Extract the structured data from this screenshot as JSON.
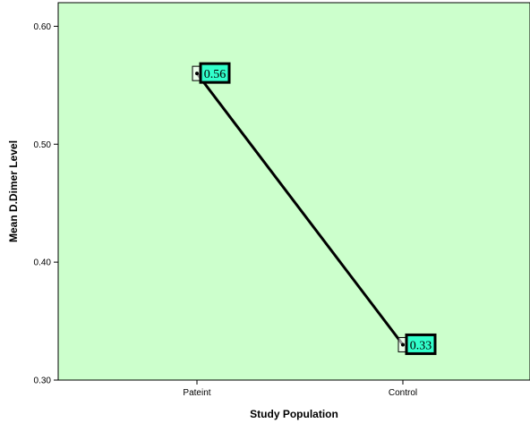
{
  "chart_data": {
    "type": "line",
    "categories": [
      "Pateint",
      "Control"
    ],
    "values": [
      0.56,
      0.33
    ],
    "data_labels": [
      "0.56",
      "0.33"
    ],
    "title": "",
    "xlabel": "Study Population",
    "ylabel": "Mean D.Dimer Level",
    "ylim": [
      0.3,
      0.62
    ],
    "yticks": [
      "0.30",
      "0.40",
      "0.50",
      "0.60"
    ],
    "ytick_values": [
      0.3,
      0.4,
      0.5,
      0.6
    ],
    "grid": false,
    "legend": "none",
    "colors": {
      "plot_background": "#ccffcc",
      "line": "#000000",
      "label_background": "#33ffcc",
      "label_border": "#000000"
    }
  }
}
